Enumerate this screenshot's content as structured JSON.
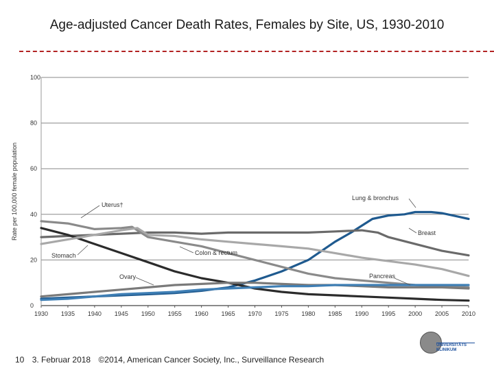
{
  "slide": {
    "title": "Age-adjusted Cancer Death Rates, Females by Site, US, 1930-2010",
    "footer_page": "10",
    "footer_date": "3. Februar 2018",
    "footer_source": "©2014, American Cancer Society, Inc., Surveillance Research",
    "logo_text": "UNIVERSITÄTS KLINIKUM"
  },
  "chart_data": {
    "type": "line",
    "title": "",
    "xlabel": "",
    "ylabel": "Rate per 100,000 female population",
    "xlim": [
      1930,
      2010
    ],
    "ylim": [
      0,
      100
    ],
    "xticks": [
      "1930",
      "1935",
      "1940",
      "1945",
      "1950",
      "1955",
      "1960",
      "1965",
      "1970",
      "1975",
      "1980",
      "1985",
      "1990",
      "1995",
      "2000",
      "2005",
      "2010"
    ],
    "yticks": [
      "100",
      "80",
      "60",
      "40",
      "20",
      "0"
    ],
    "grid": true,
    "series": [
      {
        "name": "Lung & bronchus",
        "color": "#1f5a8f",
        "x": [
          1930,
          1935,
          1940,
          1945,
          1950,
          1955,
          1960,
          1965,
          1970,
          1975,
          1980,
          1985,
          1988,
          1990,
          1992,
          1995,
          1998,
          2000,
          2003,
          2005,
          2008,
          2010
        ],
        "y": [
          3,
          3.5,
          4,
          4.5,
          5,
          5.5,
          6.5,
          8,
          11,
          15,
          20,
          28,
          32,
          35,
          38,
          39.5,
          40,
          41,
          41,
          40.5,
          39,
          38
        ]
      },
      {
        "name": "Breast",
        "color": "#6a6a6a",
        "x": [
          1930,
          1935,
          1940,
          1945,
          1950,
          1955,
          1960,
          1965,
          1970,
          1975,
          1980,
          1985,
          1990,
          1993,
          1995,
          2000,
          2005,
          2010
        ],
        "y": [
          30,
          30.5,
          31,
          31.5,
          32,
          32,
          31.5,
          32,
          32,
          32,
          32,
          32.5,
          33,
          32,
          30,
          27,
          24,
          22
        ]
      },
      {
        "name": "Uterus",
        "color": "#8a8a8a",
        "x": [
          1930,
          1935,
          1937,
          1940,
          1945,
          1947,
          1950,
          1955,
          1960,
          1965,
          1970,
          1975,
          1980,
          1985,
          1990,
          1995,
          2000,
          2005,
          2010
        ],
        "y": [
          37,
          36,
          35,
          33.5,
          34,
          34.5,
          30,
          28,
          26,
          23,
          20,
          17,
          14,
          12,
          11,
          10,
          9,
          8.5,
          8
        ]
      },
      {
        "name": "Stomach",
        "color": "#2b2b2b",
        "x": [
          1930,
          1935,
          1940,
          1945,
          1950,
          1955,
          1960,
          1965,
          1970,
          1975,
          1980,
          1985,
          1990,
          1995,
          2000,
          2005,
          2010
        ],
        "y": [
          34,
          31,
          27,
          23,
          19,
          15,
          12,
          10,
          7.5,
          6,
          5,
          4.5,
          4,
          3.5,
          3,
          2.5,
          2.2
        ]
      },
      {
        "name": "Colon & rectum",
        "color": "#a8a8a8",
        "x": [
          1930,
          1935,
          1940,
          1945,
          1948,
          1950,
          1955,
          1960,
          1965,
          1970,
          1975,
          1980,
          1985,
          1990,
          1995,
          2000,
          2005,
          2010
        ],
        "y": [
          27,
          29,
          31,
          33,
          34,
          31,
          30.5,
          29,
          28,
          27,
          26,
          25,
          23,
          21,
          19.5,
          18,
          16,
          13
        ]
      },
      {
        "name": "Ovary",
        "color": "#7a7a7a",
        "x": [
          1930,
          1935,
          1940,
          1945,
          1950,
          1955,
          1960,
          1965,
          1970,
          1975,
          1980,
          1985,
          1990,
          1995,
          2000,
          2005,
          2010
        ],
        "y": [
          4,
          5,
          6,
          7,
          8,
          9,
          9.5,
          10,
          10,
          9.5,
          9,
          9,
          8.5,
          8,
          8,
          8,
          7.5
        ]
      },
      {
        "name": "Pancreas",
        "color": "#3f7fb5",
        "x": [
          1930,
          1935,
          1940,
          1945,
          1950,
          1955,
          1960,
          1965,
          1970,
          1975,
          1980,
          1985,
          1990,
          1995,
          2000,
          2005,
          2010
        ],
        "y": [
          2.5,
          3,
          4,
          5,
          5.5,
          6,
          7,
          7.5,
          8,
          8.5,
          8.5,
          9,
          9,
          9,
          9,
          9,
          9
        ]
      }
    ],
    "annotations": [
      {
        "text": "Lung & bronchus",
        "series": "Lung & bronchus"
      },
      {
        "text": "Breast",
        "series": "Breast"
      },
      {
        "text": "Uterus†",
        "series": "Uterus"
      },
      {
        "text": "Stomach",
        "series": "Stomach"
      },
      {
        "text": "Colon & rectum",
        "series": "Colon & rectum"
      },
      {
        "text": "Ovary",
        "series": "Ovary"
      },
      {
        "text": "Pancreas",
        "series": "Pancreas"
      }
    ]
  }
}
